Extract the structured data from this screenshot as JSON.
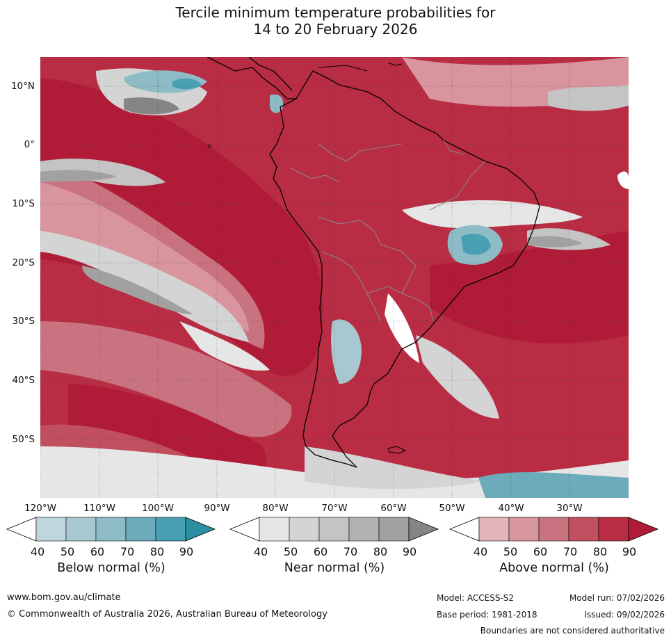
{
  "title": {
    "line1": "Tercile minimum temperature probabilities for",
    "line2": "14 to 20 February 2026"
  },
  "map": {
    "lat_labels": [
      "10°N",
      "0°",
      "10°S",
      "20°S",
      "30°S",
      "40°S",
      "50°S"
    ],
    "lon_labels": [
      "120°W",
      "110°W",
      "100°W",
      "90°W",
      "80°W",
      "70°W",
      "60°W",
      "50°W",
      "40°W",
      "30°W"
    ],
    "colors": {
      "above": [
        "#e2b5bb",
        "#d8959e",
        "#ca7380",
        "#c04f60",
        "#b82d44",
        "#b01c38"
      ],
      "near": [
        "#e6e6e6",
        "#d4d4d4",
        "#c4c4c4",
        "#b2b2b2",
        "#a1a1a1",
        "#858585"
      ],
      "below": [
        "#bed6dc",
        "#a7c8d0",
        "#8ebcc6",
        "#6cabba",
        "#48a0b2",
        "#2b8ea3"
      ],
      "coastline": "#000000",
      "borders": "#888888",
      "background": "#ffffff"
    }
  },
  "colorbars": [
    {
      "title": "Below normal (%)",
      "ticks": [
        "40",
        "50",
        "60",
        "70",
        "80",
        "90"
      ],
      "colors": [
        "#ffffff",
        "#bed6dc",
        "#a7c8d0",
        "#8ebcc6",
        "#6cabba",
        "#48a0b2",
        "#2b8ea3"
      ]
    },
    {
      "title": "Near normal (%)",
      "ticks": [
        "40",
        "50",
        "60",
        "70",
        "80",
        "90"
      ],
      "colors": [
        "#ffffff",
        "#e6e6e6",
        "#d4d4d4",
        "#c4c4c4",
        "#b2b2b2",
        "#a1a1a1",
        "#858585"
      ]
    },
    {
      "title": "Above normal (%)",
      "ticks": [
        "40",
        "50",
        "60",
        "70",
        "80",
        "90"
      ],
      "colors": [
        "#ffffff",
        "#e2b5bb",
        "#d8959e",
        "#ca7380",
        "#c04f60",
        "#b82d44",
        "#b01c38"
      ]
    }
  ],
  "footer": {
    "website": "www.bom.gov.au/climate",
    "copyright": "© Commonwealth of Australia 2026, Australian Bureau of Meteorology",
    "model": "Model: ACCESS-S2",
    "model_run": "Model run: 07/02/2026",
    "base_period": "Base period: 1981-2018",
    "issued": "Issued: 09/02/2026",
    "boundaries_note": "Boundaries are not considered authoritative"
  }
}
